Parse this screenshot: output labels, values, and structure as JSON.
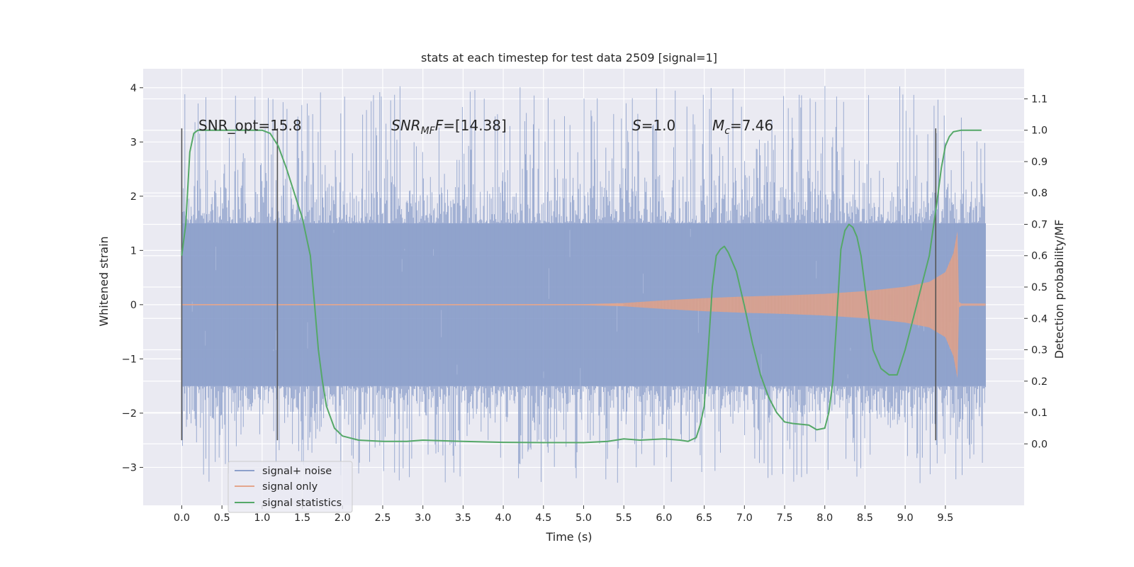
{
  "chart_data": {
    "type": "line",
    "title": "stats at each timestep for test data 2509 [signal=1]",
    "xlabel": "Time (s)",
    "ylabel_left": "Whitened strain",
    "ylabel_right": "Detection probability/MF",
    "xlim": [
      -0.48,
      10.48
    ],
    "ylim_left": [
      -3.7,
      4.35
    ],
    "ylim_right": [
      -0.196,
      1.196
    ],
    "x_ticks": [
      0.0,
      0.5,
      1.0,
      1.5,
      2.0,
      2.5,
      3.0,
      3.5,
      4.0,
      4.5,
      5.0,
      5.5,
      6.0,
      6.5,
      7.0,
      7.5,
      8.0,
      8.5,
      9.0,
      9.5
    ],
    "x_tick_labels": [
      "0.0",
      "0.5",
      "1.0",
      "1.5",
      "2.0",
      "2.5",
      "3.0",
      "3.5",
      "4.0",
      "4.5",
      "5.0",
      "5.5",
      "6.0",
      "6.5",
      "7.0",
      "7.5",
      "8.0",
      "8.5",
      "9.0",
      "9.5"
    ],
    "y_left_ticks": [
      -3,
      -2,
      -1,
      0,
      1,
      2,
      3,
      4
    ],
    "y_left_tick_labels": [
      "−3",
      "−2",
      "−1",
      "0",
      "1",
      "2",
      "3",
      "4"
    ],
    "y_right_ticks": [
      0.0,
      0.1,
      0.2,
      0.3,
      0.4,
      0.5,
      0.6,
      0.7,
      0.8,
      0.9,
      1.0,
      1.1
    ],
    "y_right_tick_labels": [
      "0.0",
      "0.1",
      "0.2",
      "0.3",
      "0.4",
      "0.5",
      "0.6",
      "0.7",
      "0.8",
      "0.9",
      "1.0",
      "1.1"
    ],
    "grid": true,
    "legend_position": "lower-left",
    "annotations": {
      "snr_opt": "SNR_opt=15.8",
      "snr_mf_main": "SNR",
      "snr_mf_sub": "MF",
      "snr_mf_value": "=[14.38]",
      "s_main": "S",
      "s_value": "=1.0",
      "mc_main": "M",
      "mc_sub": "c",
      "mc_value": "=7.46"
    },
    "vertical_markers": [
      {
        "x": 0.0,
        "y_range": [
          -2.5,
          3.25
        ],
        "color": "#555555"
      },
      {
        "x": 1.19,
        "y_range": [
          -2.5,
          3.25
        ],
        "color": "#555555"
      },
      {
        "x": 9.38,
        "y_range": [
          -2.5,
          3.25
        ],
        "color": "#555555"
      }
    ],
    "series": [
      {
        "name": "signal+ noise",
        "color": "#8da0cb",
        "opacity": 0.85,
        "axis": "left",
        "x_range": [
          0.0,
          10.0
        ],
        "core_band": [
          -1.5,
          1.5
        ],
        "spike_extent": [
          -3.3,
          4.05
        ]
      },
      {
        "name": "signal only",
        "color": "#e4a68d",
        "axis": "left",
        "envelope": {
          "x": [
            0.0,
            5.0,
            5.5,
            6.0,
            6.5,
            7.0,
            7.5,
            8.0,
            8.5,
            9.0,
            9.3,
            9.5,
            9.6,
            9.65,
            9.67,
            9.7,
            10.0
          ],
          "amplitude": [
            0.01,
            0.01,
            0.03,
            0.08,
            0.12,
            0.15,
            0.17,
            0.2,
            0.25,
            0.33,
            0.42,
            0.6,
            0.95,
            1.35,
            0.05,
            0.02,
            0.02
          ]
        }
      },
      {
        "name": "signal statistics",
        "color": "#55a868",
        "axis": "right",
        "x": [
          0.0,
          0.05,
          0.1,
          0.15,
          0.2,
          0.3,
          0.5,
          0.7,
          0.9,
          1.0,
          1.1,
          1.2,
          1.3,
          1.4,
          1.5,
          1.6,
          1.65,
          1.7,
          1.75,
          1.8,
          1.9,
          2.0,
          2.2,
          2.5,
          2.8,
          3.0,
          3.2,
          3.5,
          4.0,
          4.5,
          5.0,
          5.3,
          5.5,
          5.7,
          6.0,
          6.2,
          6.3,
          6.4,
          6.45,
          6.5,
          6.55,
          6.6,
          6.65,
          6.7,
          6.75,
          6.8,
          6.9,
          7.0,
          7.1,
          7.2,
          7.3,
          7.4,
          7.5,
          7.6,
          7.8,
          7.9,
          8.0,
          8.05,
          8.1,
          8.15,
          8.2,
          8.25,
          8.3,
          8.35,
          8.4,
          8.45,
          8.5,
          8.6,
          8.7,
          8.8,
          8.9,
          9.0,
          9.1,
          9.2,
          9.3,
          9.4,
          9.45,
          9.5,
          9.55,
          9.6,
          9.7,
          9.8,
          9.95
        ],
        "y": [
          0.6,
          0.7,
          0.93,
          0.99,
          1.0,
          1.0,
          1.0,
          1.0,
          1.0,
          1.0,
          0.99,
          0.95,
          0.88,
          0.8,
          0.72,
          0.6,
          0.45,
          0.3,
          0.2,
          0.12,
          0.05,
          0.025,
          0.012,
          0.008,
          0.008,
          0.012,
          0.01,
          0.008,
          0.005,
          0.004,
          0.004,
          0.008,
          0.016,
          0.012,
          0.016,
          0.012,
          0.008,
          0.02,
          0.06,
          0.12,
          0.3,
          0.5,
          0.6,
          0.62,
          0.63,
          0.61,
          0.55,
          0.44,
          0.32,
          0.22,
          0.15,
          0.1,
          0.07,
          0.065,
          0.06,
          0.045,
          0.05,
          0.1,
          0.2,
          0.4,
          0.62,
          0.68,
          0.7,
          0.69,
          0.66,
          0.6,
          0.5,
          0.3,
          0.24,
          0.22,
          0.22,
          0.3,
          0.4,
          0.5,
          0.6,
          0.78,
          0.88,
          0.95,
          0.98,
          0.995,
          1.0,
          1.0,
          1.0
        ]
      }
    ]
  }
}
